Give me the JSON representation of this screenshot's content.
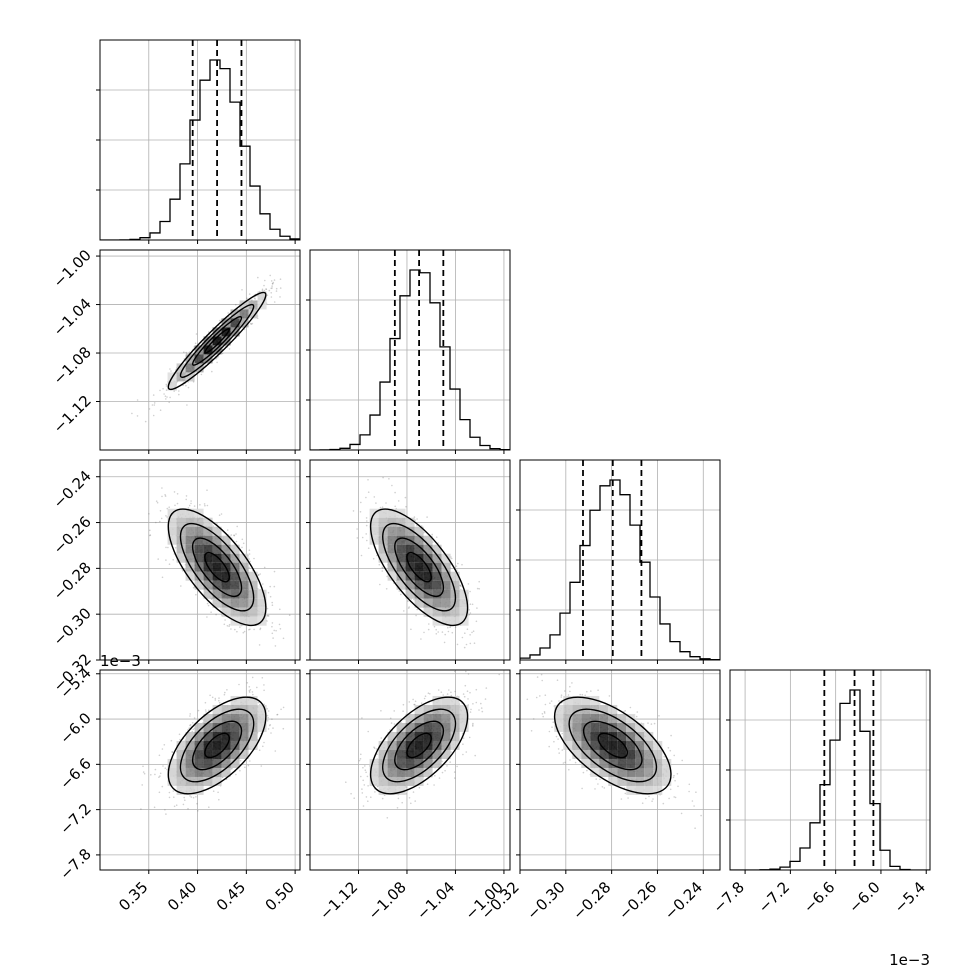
{
  "chart_data": {
    "type": "corner",
    "parameters": [
      {
        "ticks": [
          "0.35",
          "0.40",
          "0.45",
          "0.50"
        ],
        "tick_values": [
          0.35,
          0.4,
          0.45,
          0.5
        ],
        "range": [
          0.3,
          0.505
        ],
        "offset_label": "",
        "quantiles": [
          0.395,
          0.42,
          0.445
        ],
        "median": 0.42,
        "sigma": 0.025
      },
      {
        "ticks": [
          "−1.12",
          "−1.08",
          "−1.04",
          "−1.00"
        ],
        "tick_values": [
          -1.12,
          -1.08,
          -1.04,
          -1.0
        ],
        "range": [
          -1.16,
          -0.995
        ],
        "offset_label": "",
        "quantiles": [
          -1.09,
          -1.07,
          -1.05
        ],
        "median": -1.07,
        "sigma": 0.02
      },
      {
        "ticks": [
          "−0.32",
          "−0.30",
          "−0.28",
          "−0.26",
          "−0.24"
        ],
        "tick_values": [
          -0.32,
          -0.3,
          -0.28,
          -0.26,
          -0.24
        ],
        "range": [
          -0.32,
          -0.2327
        ],
        "offset_label": "",
        "quantiles": [
          -0.2925,
          -0.2795,
          -0.267
        ],
        "median": -0.2795,
        "sigma": 0.0127
      },
      {
        "ticks": [
          "−7.8",
          "−7.2",
          "−6.6",
          "−6.0",
          "−5.4"
        ],
        "tick_values": [
          -7.8,
          -7.2,
          -6.6,
          -6.0,
          -5.4
        ],
        "range": [
          -8.0,
          -5.35
        ],
        "offset_label": "1e−3",
        "quantiles": [
          -6.75,
          -6.35,
          -6.1
        ],
        "median": -6.35,
        "sigma": 0.32
      }
    ],
    "correlations": {
      "1-0": 0.95,
      "2-0": -0.7,
      "2-1": -0.7,
      "3-0": 0.6,
      "3-1": 0.6,
      "3-2": -0.6
    },
    "diagonal": "1D histograms with dashed quantile lines",
    "off_diagonal": "2D density histograms with contours and scatter points",
    "grid": true
  },
  "colors": {
    "axes": "#000000",
    "grid": "#b0b0b0",
    "histogram": "#000000",
    "scatter": "#777777",
    "background": "#ffffff"
  }
}
